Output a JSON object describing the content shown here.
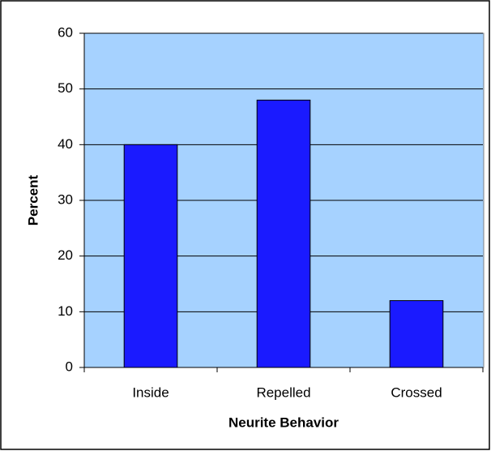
{
  "chart_data": {
    "type": "bar",
    "xlabel": "Neurite Behavior",
    "ylabel": "Percent",
    "categories": [
      "Inside",
      "Repelled",
      "Crossed"
    ],
    "values": [
      40,
      48,
      12
    ],
    "color": "#1a1aff",
    "background": "#a6d2ff",
    "ylim": [
      0,
      60
    ],
    "yticks": [
      0,
      10,
      20,
      30,
      40,
      50,
      60
    ],
    "grid": true
  }
}
